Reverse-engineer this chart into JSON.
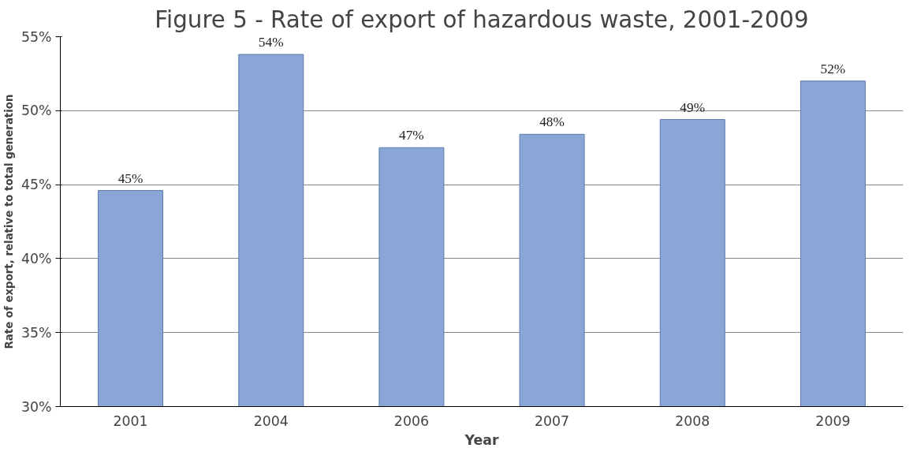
{
  "chart_data": {
    "type": "bar",
    "title": "Figure 5 - Rate of export of hazardous waste, 2001-2009",
    "xlabel": "Year",
    "ylabel": "Rate of export, relative to total generation",
    "categories": [
      "2001",
      "2004",
      "2006",
      "2007",
      "2008",
      "2009"
    ],
    "values": [
      44.6,
      53.8,
      47.5,
      48.4,
      49.4,
      52.0
    ],
    "value_labels": [
      "45%",
      "54%",
      "47%",
      "48%",
      "49%",
      "52%"
    ],
    "color": "#8aa6d6",
    "ylim": [
      30,
      55
    ],
    "yticks": [
      {
        "value": 30,
        "label": "30%"
      },
      {
        "value": 35,
        "label": "35%"
      },
      {
        "value": 40,
        "label": "40%"
      },
      {
        "value": 45,
        "label": "45%"
      },
      {
        "value": 50,
        "label": "50%"
      },
      {
        "value": 55,
        "label": "55%"
      }
    ],
    "grid": "y"
  }
}
